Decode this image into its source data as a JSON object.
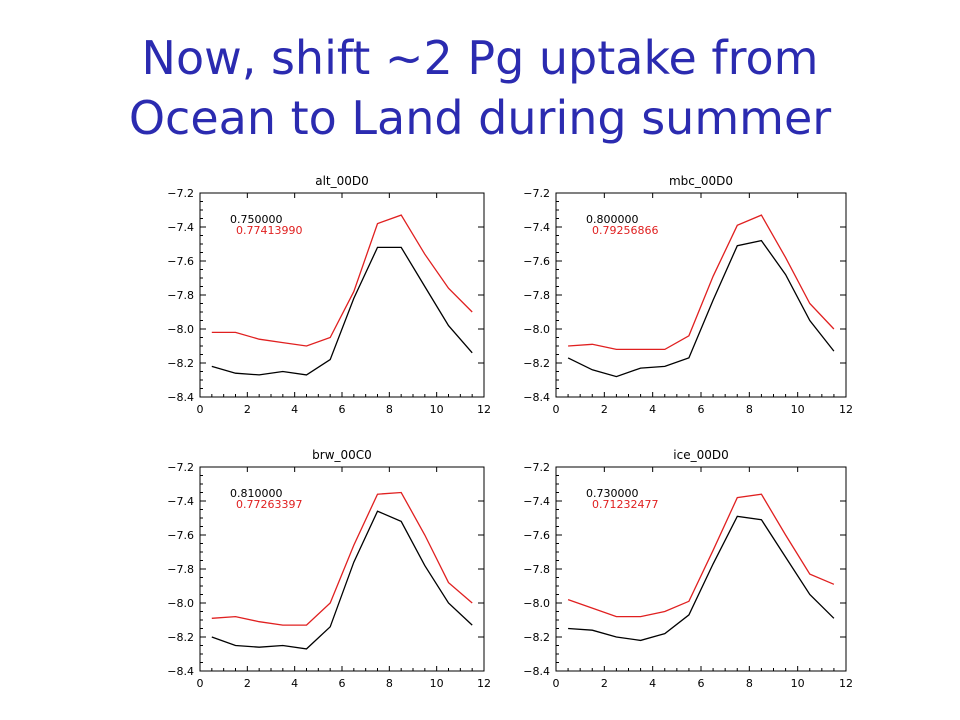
{
  "slide": {
    "title_line1": "Now, shift ~2 Pg uptake from",
    "title_line2": "Ocean to Land during summer"
  },
  "colors": {
    "title": "#2b2bb0",
    "series_black": "#000000",
    "series_red": "#e02020"
  },
  "chart_data": [
    {
      "type": "line",
      "title": "alt_00D0",
      "x": [
        0.5,
        1.5,
        2.5,
        3.5,
        4.5,
        5.5,
        6.5,
        7.5,
        8.5,
        9.5,
        10.5,
        11.5
      ],
      "xlim": [
        0,
        12
      ],
      "ylim": [
        -8.4,
        -7.2
      ],
      "xticks": [
        "0",
        "2",
        "4",
        "6",
        "8",
        "10",
        "12"
      ],
      "yticks": [
        "-7.2",
        "-7.4",
        "-7.6",
        "-7.8",
        "-8.0",
        "-8.2",
        "-8.4"
      ],
      "annotations": [
        {
          "text": "0.750000",
          "color": "#000000"
        },
        {
          "text": "0.77413990",
          "color": "#e02020"
        }
      ],
      "series": [
        {
          "color": "#000000",
          "values": [
            -8.22,
            -8.26,
            -8.27,
            -8.25,
            -8.27,
            -8.18,
            -7.82,
            -7.52,
            -7.52,
            -7.75,
            -7.98,
            -8.14
          ]
        },
        {
          "color": "#e02020",
          "values": [
            -8.02,
            -8.02,
            -8.06,
            -8.08,
            -8.1,
            -8.05,
            -7.78,
            -7.38,
            -7.33,
            -7.56,
            -7.76,
            -7.9
          ]
        }
      ]
    },
    {
      "type": "line",
      "title": "mbc_00D0",
      "x": [
        0.5,
        1.5,
        2.5,
        3.5,
        4.5,
        5.5,
        6.5,
        7.5,
        8.5,
        9.5,
        10.5,
        11.5
      ],
      "xlim": [
        0,
        12
      ],
      "ylim": [
        -8.4,
        -7.2
      ],
      "xticks": [
        "0",
        "2",
        "4",
        "6",
        "8",
        "10",
        "12"
      ],
      "yticks": [
        "-7.2",
        "-7.4",
        "-7.6",
        "-7.8",
        "-8.0",
        "-8.2",
        "-8.4"
      ],
      "annotations": [
        {
          "text": "0.800000",
          "color": "#000000"
        },
        {
          "text": "0.79256866",
          "color": "#e02020"
        }
      ],
      "series": [
        {
          "color": "#000000",
          "values": [
            -8.17,
            -8.24,
            -8.28,
            -8.23,
            -8.22,
            -8.17,
            -7.83,
            -7.51,
            -7.48,
            -7.68,
            -7.95,
            -8.13
          ]
        },
        {
          "color": "#e02020",
          "values": [
            -8.1,
            -8.09,
            -8.12,
            -8.12,
            -8.12,
            -8.04,
            -7.69,
            -7.39,
            -7.33,
            -7.58,
            -7.85,
            -8.0
          ]
        }
      ]
    },
    {
      "type": "line",
      "title": "brw_00C0",
      "x": [
        0.5,
        1.5,
        2.5,
        3.5,
        4.5,
        5.5,
        6.5,
        7.5,
        8.5,
        9.5,
        10.5,
        11.5
      ],
      "xlim": [
        0,
        12
      ],
      "ylim": [
        -8.4,
        -7.2
      ],
      "xticks": [
        "0",
        "2",
        "4",
        "6",
        "8",
        "10",
        "12"
      ],
      "yticks": [
        "-7.2",
        "-7.4",
        "-7.6",
        "-7.8",
        "-8.0",
        "-8.2",
        "-8.4"
      ],
      "annotations": [
        {
          "text": "0.810000",
          "color": "#000000"
        },
        {
          "text": "0.77263397",
          "color": "#e02020"
        }
      ],
      "series": [
        {
          "color": "#000000",
          "values": [
            -8.2,
            -8.25,
            -8.26,
            -8.25,
            -8.27,
            -8.14,
            -7.76,
            -7.46,
            -7.52,
            -7.78,
            -8.0,
            -8.13
          ]
        },
        {
          "color": "#e02020",
          "values": [
            -8.09,
            -8.08,
            -8.11,
            -8.13,
            -8.13,
            -8.0,
            -7.66,
            -7.36,
            -7.35,
            -7.6,
            -7.88,
            -8.0
          ]
        }
      ]
    },
    {
      "type": "line",
      "title": "ice_00D0",
      "x": [
        0.5,
        1.5,
        2.5,
        3.5,
        4.5,
        5.5,
        6.5,
        7.5,
        8.5,
        9.5,
        10.5,
        11.5
      ],
      "xlim": [
        0,
        12
      ],
      "ylim": [
        -8.4,
        -7.2
      ],
      "xticks": [
        "0",
        "2",
        "4",
        "6",
        "8",
        "10",
        "12"
      ],
      "yticks": [
        "-7.2",
        "-7.4",
        "-7.6",
        "-7.8",
        "-8.0",
        "-8.2",
        "-8.4"
      ],
      "annotations": [
        {
          "text": "0.730000",
          "color": "#000000"
        },
        {
          "text": "0.71232477",
          "color": "#e02020"
        }
      ],
      "series": [
        {
          "color": "#000000",
          "values": [
            -8.15,
            -8.16,
            -8.2,
            -8.22,
            -8.18,
            -8.07,
            -7.77,
            -7.49,
            -7.51,
            -7.73,
            -7.95,
            -8.09
          ]
        },
        {
          "color": "#e02020",
          "values": [
            -7.98,
            -8.03,
            -8.08,
            -8.08,
            -8.05,
            -7.99,
            -7.69,
            -7.38,
            -7.36,
            -7.6,
            -7.83,
            -7.89
          ]
        }
      ]
    }
  ]
}
